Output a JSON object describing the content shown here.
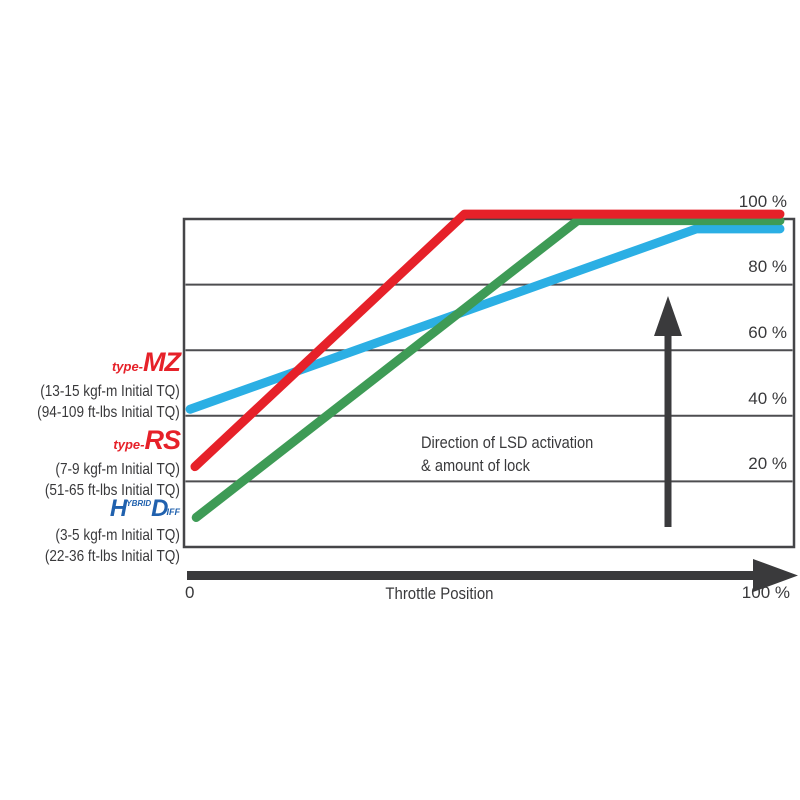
{
  "chart_data": {
    "type": "line",
    "title": "",
    "xlabel": "Throttle Position",
    "x_axis": {
      "origin_label": "0",
      "max_label": "100 %",
      "range": [
        0,
        100
      ]
    },
    "y_axis": {
      "range": [
        0,
        100
      ],
      "unit": "%",
      "grid": "horizontal"
    },
    "yticks": [
      {
        "value": 100,
        "label": "100 %"
      },
      {
        "value": 80,
        "label": "80 %"
      },
      {
        "value": 60,
        "label": "60 %"
      },
      {
        "value": 40,
        "label": "40 %"
      },
      {
        "value": 20,
        "label": "20 %"
      }
    ],
    "annotation": {
      "line1": "Direction of LSD activation",
      "line2": "& amount of lock"
    },
    "series": [
      {
        "name": "type-MZ",
        "color": "#2bafe4",
        "points": [
          [
            1.0,
            42.0
          ],
          [
            84.0,
            97.0
          ],
          [
            97.7,
            97.0
          ]
        ]
      },
      {
        "name": "HYBRID-DIFF",
        "color": "#3e9b56",
        "points": [
          [
            2.0,
            9.0
          ],
          [
            64.5,
            99.5
          ],
          [
            97.7,
            99.5
          ]
        ]
      },
      {
        "name": "type-RS",
        "color": "#e62129",
        "points": [
          [
            1.8,
            24.5
          ],
          [
            46.0,
            101.5
          ],
          [
            97.7,
            101.5
          ]
        ]
      }
    ]
  },
  "left_labels": {
    "mz": {
      "logo_prefix": "type-",
      "logo_name": "MZ",
      "torque_metric": "(13-15 kgf-m Initial TQ)",
      "torque_imperial": "(94-109 ft-lbs Initial TQ)"
    },
    "rs": {
      "logo_prefix": "type-",
      "logo_name": "RS",
      "torque_metric": "(7-9 kgf-m Initial TQ)",
      "torque_imperial": "(51-65 ft-lbs Initial TQ)"
    },
    "hd": {
      "logo_h": "H",
      "logo_top": "YBRID",
      "logo_d": "D",
      "logo_suffix": "IFF",
      "torque_metric": "(3-5 kgf-m Initial TQ)",
      "torque_imperial": "(22-36 ft-lbs Initial TQ)"
    }
  },
  "colors": {
    "line_mz_cyan": "#2bafe4",
    "line_hd_green": "#3e9b56",
    "line_rs_red": "#e62129",
    "logo_red": "#e62129",
    "logo_blue": "#2061ae",
    "text": "#39393b",
    "arrow": "#3a3a3c",
    "grid": "#4d4d50",
    "border": "#454548"
  }
}
